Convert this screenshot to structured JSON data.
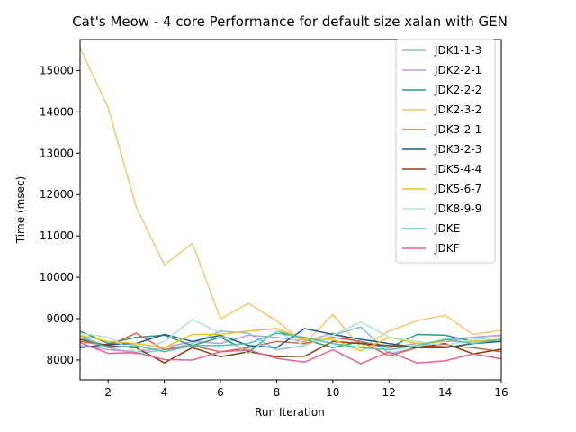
{
  "chart_data": {
    "type": "line",
    "title": "Cat's Meow - 4 core Performance for default size xalan with GEN",
    "xlabel": "Run Iteration",
    "ylabel": "Time (msec)",
    "xlim": [
      1,
      16
    ],
    "ylim": [
      7520,
      15750
    ],
    "xticks": [
      2,
      4,
      6,
      8,
      10,
      12,
      14,
      16
    ],
    "yticks": [
      8000,
      9000,
      10000,
      11000,
      12000,
      13000,
      14000,
      15000
    ],
    "grid": false,
    "legend_position": "top-right",
    "x": [
      1,
      2,
      3,
      4,
      5,
      6,
      7,
      8,
      9,
      10,
      11,
      12,
      13,
      14,
      15,
      16
    ],
    "series": [
      {
        "name": "JDK1-1-3",
        "color": "#89bedc",
        "values": [
          8600,
          8300,
          8150,
          8250,
          8400,
          8700,
          8650,
          8250,
          8350,
          8600,
          8800,
          8150,
          8300,
          8500,
          8550,
          8600
        ]
      },
      {
        "name": "JDK2-2-1",
        "color": "#b79fd6",
        "values": [
          8350,
          8250,
          8200,
          8300,
          8450,
          8400,
          8600,
          8550,
          8450,
          8650,
          8400,
          8300,
          8400,
          8450,
          8550,
          8600
        ]
      },
      {
        "name": "JDK2-2-2",
        "color": "#2a9a7e",
        "values": [
          8700,
          8400,
          8550,
          8600,
          8350,
          8550,
          8200,
          8700,
          8500,
          8300,
          8450,
          8300,
          8620,
          8600,
          8450,
          8500
        ]
      },
      {
        "name": "JDK2-3-2",
        "color": "#f5c56f",
        "values": [
          15550,
          14100,
          11700,
          10300,
          10820,
          9000,
          9370,
          8950,
          8400,
          9100,
          8300,
          8700,
          8950,
          9080,
          8620,
          8720
        ]
      },
      {
        "name": "JDK3-2-1",
        "color": "#d2664e",
        "values": [
          8450,
          8350,
          8650,
          8250,
          8350,
          8200,
          8300,
          8450,
          8400,
          8550,
          8450,
          8100,
          8300,
          8350,
          8300,
          8200
        ]
      },
      {
        "name": "JDK3-2-3",
        "color": "#1d5d8a",
        "values": [
          8300,
          8380,
          8400,
          8620,
          8450,
          8600,
          8350,
          8300,
          8760,
          8620,
          8500,
          8400,
          8300,
          8300,
          8400,
          8450
        ]
      },
      {
        "name": "JDK5-4-4",
        "color": "#8a3d10",
        "values": [
          8500,
          8350,
          8300,
          7930,
          8300,
          8080,
          8200,
          8080,
          8090,
          8450,
          8400,
          8350,
          8300,
          8400,
          8150,
          8260
        ]
      },
      {
        "name": "JDK5-6-7",
        "color": "#f2be1b",
        "values": [
          8600,
          8450,
          8400,
          8300,
          8620,
          8620,
          8700,
          8760,
          8500,
          8500,
          8220,
          8550,
          8400,
          8450,
          8450,
          8500
        ]
      },
      {
        "name": "JDK8-9-9",
        "color": "#aee6c8",
        "values": [
          8650,
          8550,
          8200,
          8450,
          8980,
          8650,
          8150,
          8700,
          8350,
          8600,
          8920,
          8550,
          8450,
          8350,
          8500,
          8550
        ]
      },
      {
        "name": "JDKE",
        "color": "#4ec3ac",
        "values": [
          8550,
          8300,
          8350,
          8200,
          8350,
          8350,
          8400,
          8650,
          8550,
          8400,
          8300,
          8250,
          8350,
          8500,
          8400,
          8500
        ]
      },
      {
        "name": "JDKF",
        "color": "#e5648f",
        "values": [
          8420,
          8160,
          8180,
          8010,
          8000,
          8200,
          8240,
          8040,
          7950,
          8250,
          7910,
          8200,
          7930,
          7980,
          8150,
          8030
        ]
      }
    ]
  }
}
